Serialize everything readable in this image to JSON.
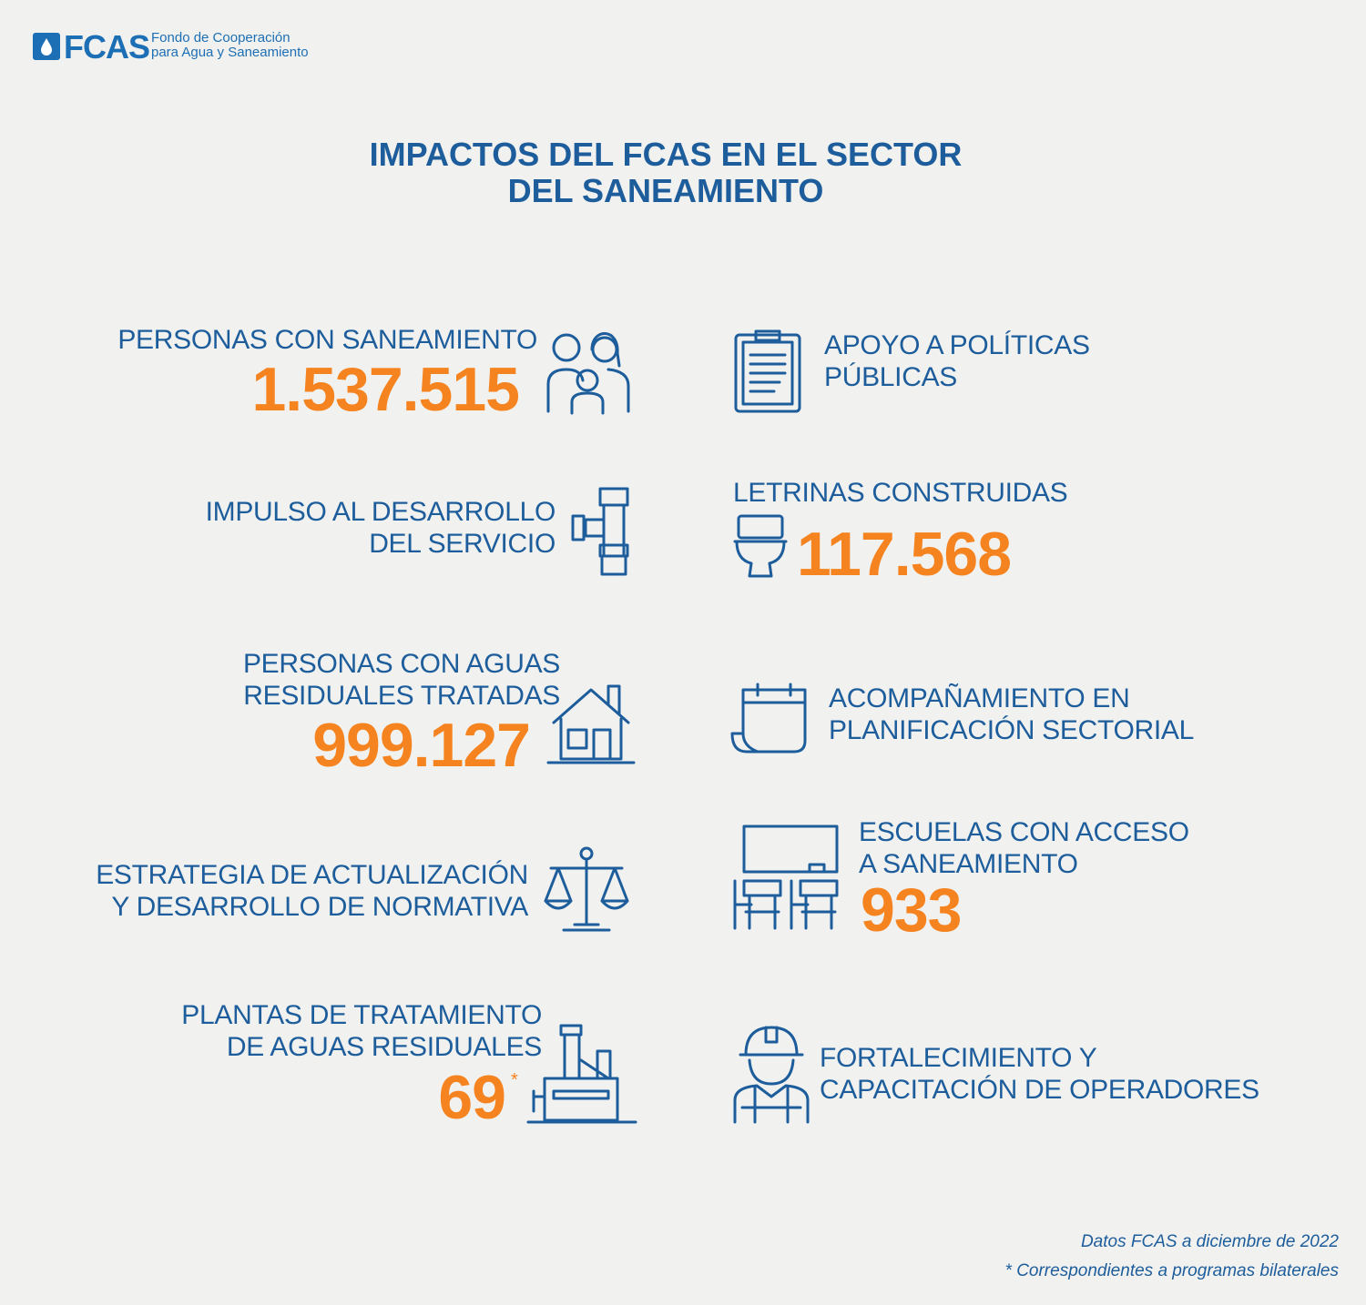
{
  "header": {
    "logo_text": "FCAS",
    "logo_lines": [
      "Fondo de Cooperación",
      "para Agua y Saneamiento"
    ]
  },
  "title_lines": [
    "IMPACTOS DEL FCAS EN EL SECTOR",
    "DEL SANEAMIENTO"
  ],
  "left_items": [
    {
      "label_lines": [
        "PERSONAS CON SANEAMIENTO"
      ],
      "value": "1.537.515"
    },
    {
      "label_lines": [
        "IMPULSO AL DESARROLLO",
        "DEL SERVICIO"
      ]
    },
    {
      "label_lines": [
        "PERSONAS CON AGUAS",
        "RESIDUALES TRATADAS"
      ],
      "value": "999.127"
    },
    {
      "label_lines": [
        "ESTRATEGIA DE ACTUALIZACIÓN",
        "Y DESARROLLO DE NORMATIVA"
      ]
    },
    {
      "label_lines": [
        "PLANTAS DE TRATAMIENTO",
        "DE AGUAS RESIDUALES"
      ],
      "value": "69",
      "value_note": "*"
    }
  ],
  "right_items": [
    {
      "label_lines": [
        "APOYO A POLÍTICAS",
        "PÚBLICAS"
      ]
    },
    {
      "label_lines": [
        "LETRINAS CONSTRUIDAS"
      ],
      "value": "117.568"
    },
    {
      "label_lines": [
        "ACOMPAÑAMIENTO EN",
        "PLANIFICACIÓN SECTORIAL"
      ]
    },
    {
      "label_lines": [
        "ESCUELAS CON ACCESO",
        "A SANEAMIENTO"
      ],
      "value": "933"
    },
    {
      "label_lines": [
        "FORTALECIMIENTO Y",
        "CAPACITACIÓN DE OPERADORES"
      ]
    }
  ],
  "footer_lines": [
    "Datos FCAS a diciembre de 2022",
    "* Correspondientes a programas bilaterales"
  ]
}
